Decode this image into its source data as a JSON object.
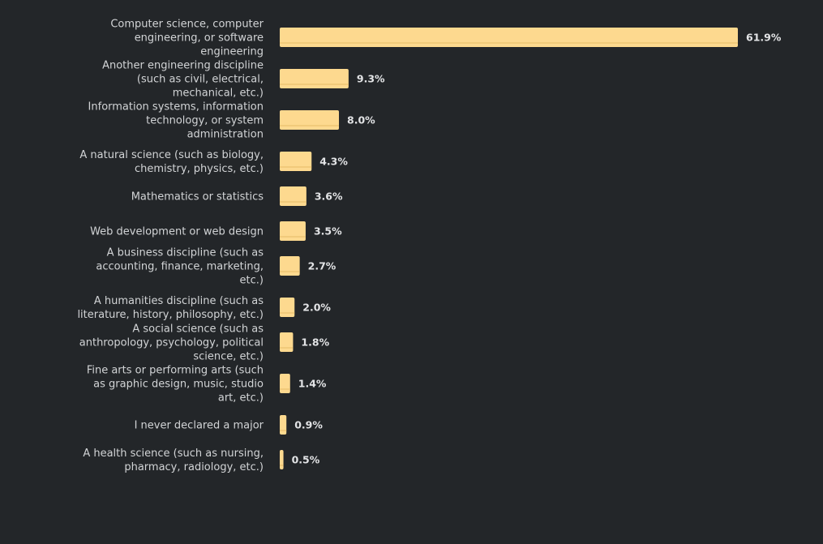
{
  "chart_data": {
    "type": "bar",
    "orientation": "horizontal",
    "categories": [
      "Computer science, computer engineering, or software engineering",
      "Another engineering discipline (such as civil, electrical, mechanical, etc.)",
      "Information systems, information technology, or system administration",
      "A natural science (such as biology, chemistry, physics, etc.)",
      "Mathematics or statistics",
      "Web development or web design",
      "A business discipline (such as accounting, finance, marketing, etc.)",
      "A humanities discipline (such as literature, history, philosophy, etc.)",
      "A social science (such as anthropology, psychology, political science, etc.)",
      "Fine arts or performing arts (such as graphic design, music, studio art, etc.)",
      "I never declared a major",
      "A health science (such as nursing, pharmacy, radiology, etc.)"
    ],
    "values": [
      61.9,
      9.3,
      8.0,
      4.3,
      3.6,
      3.5,
      2.7,
      2.0,
      1.8,
      1.4,
      0.9,
      0.5
    ],
    "value_labels": [
      "61.9%",
      "9.3%",
      "8.0%",
      "4.3%",
      "3.6%",
      "3.5%",
      "2.7%",
      "2.0%",
      "1.8%",
      "1.4%",
      "0.9%",
      "0.5%"
    ],
    "category_lines": [
      [
        "Computer science, computer",
        "engineering, or software",
        "engineering"
      ],
      [
        "Another engineering discipline",
        "(such as civil, electrical,",
        "mechanical, etc.)"
      ],
      [
        "Information systems, information",
        "technology, or system",
        "administration"
      ],
      [
        "A natural science (such as biology,",
        "chemistry, physics, etc.)"
      ],
      [
        "Mathematics or statistics"
      ],
      [
        "Web development or web design"
      ],
      [
        "A business discipline (such as",
        "accounting, finance, marketing,",
        "etc.)"
      ],
      [
        "A humanities discipline (such as",
        "literature, history, philosophy, etc.)"
      ],
      [
        "A social science (such as",
        "anthropology, psychology, political",
        "science, etc.)"
      ],
      [
        "Fine arts or performing arts (such",
        "as graphic design, music, studio",
        "art, etc.)"
      ],
      [
        "I never declared a major"
      ],
      [
        "A health science (such as nursing,",
        "pharmacy, radiology, etc.)"
      ]
    ],
    "title": "",
    "xlabel": "",
    "ylabel": "",
    "xlim": [
      0,
      61.9
    ],
    "grid": false,
    "legend": "none",
    "colors": {
      "background": "#232629",
      "bar": "#fdd98f",
      "bar_shade": "#e8bd6b",
      "category_text": "#d2d4d6",
      "value_text": "#e3e4e6"
    }
  }
}
